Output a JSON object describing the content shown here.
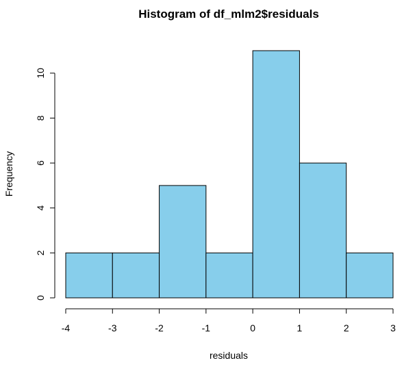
{
  "chart_data": {
    "type": "bar",
    "title": "Histogram of df_mlm2$residuals",
    "xlabel": "residuals",
    "ylabel": "Frequency",
    "bins": [
      {
        "from": -4,
        "to": -3,
        "count": 2
      },
      {
        "from": -3,
        "to": -2,
        "count": 2
      },
      {
        "from": -2,
        "to": -1,
        "count": 5
      },
      {
        "from": -1,
        "to": 0,
        "count": 2
      },
      {
        "from": 0,
        "to": 1,
        "count": 11
      },
      {
        "from": 1,
        "to": 2,
        "count": 6
      },
      {
        "from": 2,
        "to": 3,
        "count": 2
      }
    ],
    "xlim": [
      -4,
      3
    ],
    "ylim": [
      0,
      11
    ],
    "xticks": [
      -4,
      -3,
      -2,
      -1,
      0,
      1,
      2,
      3
    ],
    "yticks": [
      0,
      2,
      4,
      6,
      8,
      10
    ],
    "grid": false,
    "bar_color": "#87CEEB",
    "edge_color": "#000000"
  }
}
